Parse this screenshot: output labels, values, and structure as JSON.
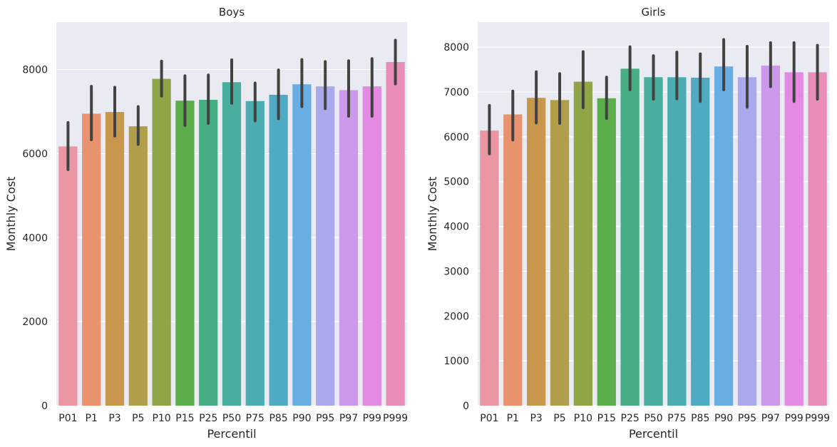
{
  "chart_data": [
    {
      "type": "bar",
      "title": "Boys",
      "xlabel": "Percentil",
      "ylabel": "Monthly Cost",
      "categories": [
        "P01",
        "P1",
        "P3",
        "P5",
        "P10",
        "P15",
        "P25",
        "P50",
        "P75",
        "P85",
        "P90",
        "P95",
        "P97",
        "P99",
        "P999"
      ],
      "values": [
        6170,
        6950,
        6990,
        6650,
        7780,
        7260,
        7280,
        7700,
        7250,
        7400,
        7650,
        7600,
        7510,
        7600,
        8180
      ],
      "error_low": [
        5620,
        6330,
        6420,
        6220,
        7370,
        6670,
        6720,
        7200,
        6780,
        6830,
        7120,
        7070,
        6890,
        6890,
        7660
      ],
      "error_high": [
        6740,
        7600,
        7580,
        7120,
        8200,
        7850,
        7870,
        8230,
        7680,
        7990,
        8240,
        8190,
        8210,
        8260,
        8700
      ],
      "ylim": [
        0,
        9130
      ],
      "yticks": [
        0,
        2000,
        4000,
        6000,
        8000
      ],
      "grid": true,
      "colors": [
        "#ea96a3",
        "#e8926e",
        "#c9974b",
        "#b19e4a",
        "#8fa546",
        "#5cae4a",
        "#48ad84",
        "#49ae9e",
        "#4bacb1",
        "#4eabc1",
        "#68aee3",
        "#a9a9ec",
        "#cc98ea",
        "#e58ae2",
        "#e98db9"
      ]
    },
    {
      "type": "bar",
      "title": "Girls",
      "xlabel": "Percentil",
      "ylabel": "Monthly Cost",
      "categories": [
        "P01",
        "P1",
        "P3",
        "P5",
        "P10",
        "P15",
        "P25",
        "P50",
        "P75",
        "P85",
        "P90",
        "P95",
        "P97",
        "P99",
        "P999"
      ],
      "values": [
        6140,
        6500,
        6870,
        6820,
        7230,
        6860,
        7520,
        7330,
        7330,
        7320,
        7570,
        7330,
        7590,
        7440,
        7440
      ],
      "error_low": [
        5620,
        5930,
        6310,
        6300,
        6650,
        6410,
        7050,
        6840,
        6850,
        6790,
        7050,
        6660,
        7120,
        6790,
        6840
      ],
      "error_high": [
        6700,
        7020,
        7450,
        7410,
        7900,
        7330,
        8010,
        7810,
        7890,
        7850,
        8170,
        8020,
        8100,
        8100,
        8040
      ],
      "ylim": [
        0,
        8560
      ],
      "yticks": [
        0,
        1000,
        2000,
        3000,
        4000,
        5000,
        6000,
        7000,
        8000
      ],
      "grid": true,
      "colors": [
        "#ea96a3",
        "#e8926e",
        "#c9974b",
        "#b19e4a",
        "#8fa546",
        "#5cae4a",
        "#48ad84",
        "#49ae9e",
        "#4bacb1",
        "#4eabc1",
        "#68aee3",
        "#a9a9ec",
        "#cc98ea",
        "#e58ae2",
        "#e98db9"
      ]
    }
  ]
}
